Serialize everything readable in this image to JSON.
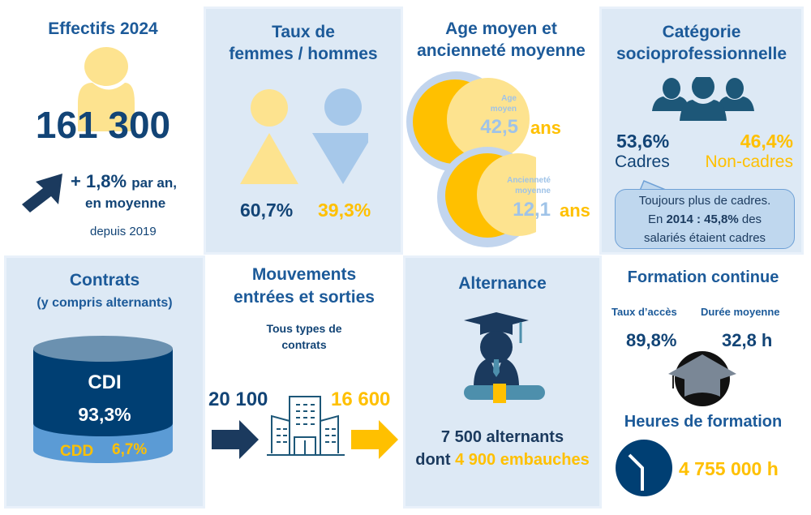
{
  "effectifs": {
    "title": "Effectifs 2024",
    "value": "161 300",
    "growth": "+ 1,8%",
    "growth_suffix": "par an,",
    "growth_line2": "en moyenne",
    "since": "depuis 2019"
  },
  "genre": {
    "title_l1": "Taux de",
    "title_l2": "femmes / hommes",
    "femmes": "60,7%",
    "hommes": "39,3%"
  },
  "age": {
    "title_l1": "Age moyen et",
    "title_l2": "ancienneté moyenne",
    "age_label_l1": "Age",
    "age_label_l2": "moyen",
    "age_value": "42,5",
    "anc_label_l1": "Ancienneté",
    "anc_label_l2": "moyenne",
    "anc_value": "12,1",
    "unit": "ans"
  },
  "csp": {
    "title_l1": "Catégorie",
    "title_l2": "socioprofessionnelle",
    "cadres_pct": "53,6%",
    "cadres_label": "Cadres",
    "noncadres_pct": "46,4%",
    "noncadres_label": "Non-cadres",
    "note_l1": "Toujours plus de cadres.",
    "note_en": "En",
    "note_year": "2014 : 45,8%",
    "note_des": "des",
    "note_l3": "salariés étaient cadres"
  },
  "contrats": {
    "title": "Contrats",
    "subtitle": "(y compris alternants)",
    "cdi_label": "CDI",
    "cdi_pct": "93,3%",
    "cdd_label": "CDD",
    "cdd_pct": "6,7%"
  },
  "mouvements": {
    "title_l1": "Mouvements",
    "title_l2": "entrées et sorties",
    "sub_l1": "Tous types de",
    "sub_l2": "contrats",
    "entrees": "20 100",
    "sorties": "16 600"
  },
  "alternance": {
    "title": "Alternance",
    "line1": "7 500 alternants",
    "dont": "dont",
    "embauches": "4 900 embauches"
  },
  "formation": {
    "title": "Formation continue",
    "taux_label": "Taux d’accès",
    "taux_value": "89,8%",
    "duree_label": "Durée moyenne",
    "duree_value": "32,8 h",
    "heures_title": "Heures de formation",
    "heures_value": "4 755 000 h"
  },
  "colors": {
    "dark": "#124476",
    "title": "#1c5a99",
    "yellow": "#ffc000",
    "light_yellow": "#fde38f",
    "light_blue": "#a6c8ea",
    "panel": "#dde9f5"
  }
}
